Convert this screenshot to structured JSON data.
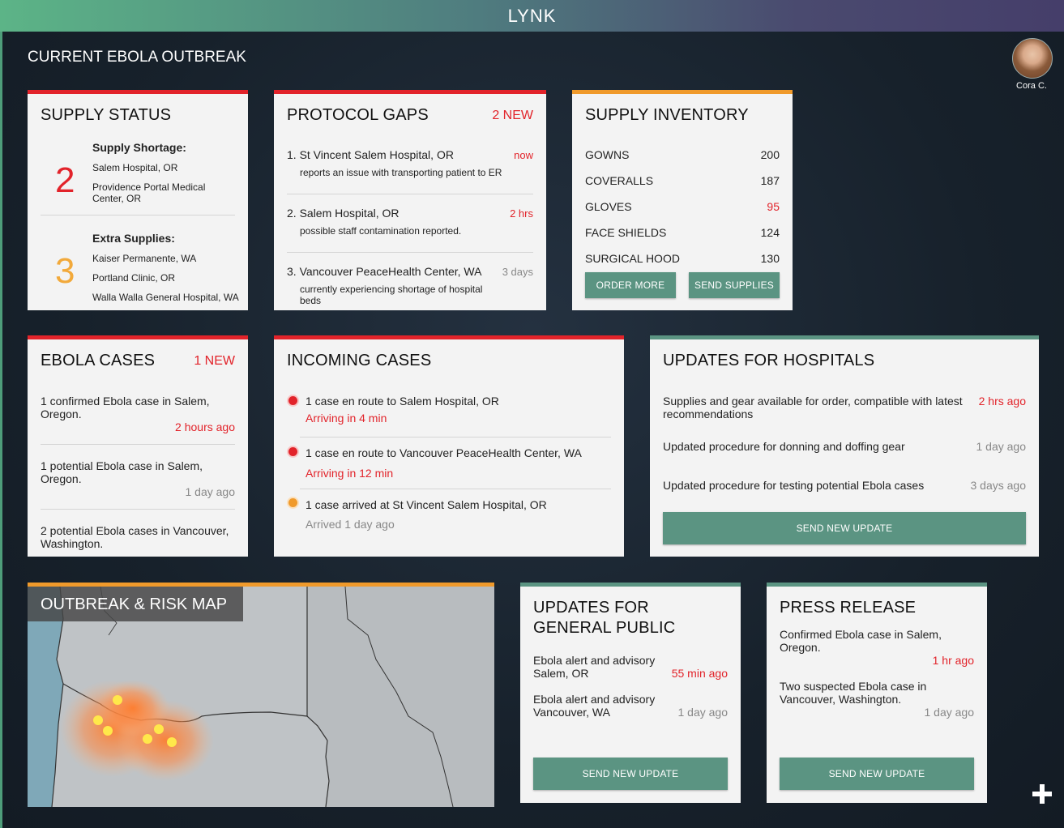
{
  "app": {
    "title": "LYNK"
  },
  "page": {
    "title": "CURRENT EBOLA OUTBREAK"
  },
  "user": {
    "name": "Cora C."
  },
  "colors": {
    "alert_red": "#e2232a",
    "warning_orange": "#f09a2b",
    "accent_green": "#5b9482"
  },
  "supply_status": {
    "title": "SUPPLY STATUS",
    "shortage": {
      "count": "2",
      "label": "Supply Shortage:",
      "items": [
        "Salem Hospital, OR",
        "Providence Portal Medical Center, OR"
      ]
    },
    "extra": {
      "count": "3",
      "label": "Extra Supplies:",
      "items": [
        "Kaiser Permanente, WA",
        "Portland Clinic, OR",
        "Walla Walla General Hospital, WA"
      ]
    }
  },
  "protocol_gaps": {
    "title": "PROTOCOL GAPS",
    "badge": "2 NEW",
    "items": [
      {
        "heading": "1. St Vincent Salem Hospital, OR",
        "detail": "reports an issue with transporting patient to ER",
        "time": "now"
      },
      {
        "heading": "2. Salem Hospital, OR",
        "detail": "possible staff contamination reported.",
        "time": "2 hrs"
      },
      {
        "heading": "3. Vancouver PeaceHealth Center, WA",
        "detail": "currently experiencing shortage of hospital beds",
        "time": "3 days"
      }
    ]
  },
  "supply_inventory": {
    "title": "SUPPLY INVENTORY",
    "items": [
      {
        "name": "GOWNS",
        "qty": "200"
      },
      {
        "name": "COVERALLS",
        "qty": "187"
      },
      {
        "name": "GLOVES",
        "qty": "95"
      },
      {
        "name": "FACE SHIELDS",
        "qty": "124"
      },
      {
        "name": "SURGICAL HOOD",
        "qty": "130"
      }
    ],
    "order_label": "ORDER MORE",
    "send_label": "SEND SUPPLIES"
  },
  "ebola_cases": {
    "title": "EBOLA CASES",
    "badge": "1 NEW",
    "items": [
      {
        "text": "1 confirmed Ebola case in Salem, Oregon.",
        "time": "2 hours ago"
      },
      {
        "text": "1 potential Ebola case in Salem, Oregon.",
        "time": "1 day ago"
      },
      {
        "text": "2 potential Ebola cases in Vancouver, Washington.",
        "time": ""
      }
    ]
  },
  "incoming_cases": {
    "title": "INCOMING CASES",
    "items": [
      {
        "text": "1 case en route to Salem Hospital, OR",
        "status": "Arriving in 4 min"
      },
      {
        "text": "1 case en route to Vancouver PeaceHealth Center, WA",
        "status": "Arriving in 12 min"
      },
      {
        "text": "1 case arrived at St Vincent Salem Hospital, OR",
        "status": "Arrived 1 day ago"
      }
    ]
  },
  "updates_hospitals": {
    "title": "UPDATES FOR HOSPITALS",
    "items": [
      {
        "text": "Supplies and gear available for order, compatible with latest recommendations",
        "time": "2 hrs ago"
      },
      {
        "text": "Updated procedure for donning and doffing gear",
        "time": "1 day ago"
      },
      {
        "text": "Updated procedure for testing potential Ebola cases",
        "time": "3 days ago"
      }
    ],
    "button": "SEND NEW UPDATE"
  },
  "map": {
    "title": "OUTBREAK & RISK MAP"
  },
  "updates_public": {
    "title_line1": "UPDATES FOR",
    "title_line2": "GENERAL PUBLIC",
    "items": [
      {
        "line1": "Ebola alert and advisory",
        "line2": "Salem, OR",
        "time": "55 min ago"
      },
      {
        "line1": "Ebola alert and advisory",
        "line2": "Vancouver, WA",
        "time": "1 day ago"
      }
    ],
    "button": "SEND NEW UPDATE"
  },
  "press_release": {
    "title": "PRESS RELEASE",
    "items": [
      {
        "text": "Confirmed Ebola case in Salem, Oregon.",
        "time": "1 hr ago"
      },
      {
        "text": "Two suspected Ebola case in Vancouver, Washington.",
        "time": "1 day ago"
      }
    ],
    "button": "SEND NEW UPDATE"
  },
  "fab": {
    "icon": "plus-icon"
  }
}
